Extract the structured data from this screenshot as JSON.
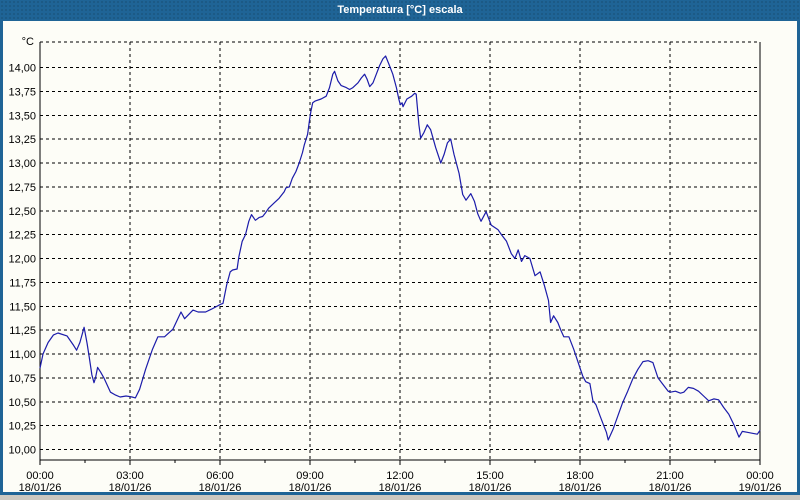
{
  "window": {
    "title": "Temperatura [°C] escala"
  },
  "frame": {
    "title_bar_color": "#1f6496",
    "border_color": "#1f6496",
    "background": "#fdfdf7",
    "outer_strip_color": "#ccc8c0"
  },
  "chart_data": {
    "type": "line",
    "title": "Temperatura [°C] escala",
    "y_unit_label": "°C",
    "xlabel": "",
    "ylabel": "",
    "ylim": [
      9.9,
      14.27
    ],
    "x_hours_range": [
      0,
      24
    ],
    "grid": "dashed",
    "legend_position": "none",
    "minor_x_tick_hours": 1.5,
    "grid_color": "#000000",
    "yticks": [
      {
        "v": 14.0,
        "label": "14,00"
      },
      {
        "v": 13.75,
        "label": "13,75"
      },
      {
        "v": 13.5,
        "label": "13,50"
      },
      {
        "v": 13.25,
        "label": "13,25"
      },
      {
        "v": 13.0,
        "label": "13,00"
      },
      {
        "v": 12.75,
        "label": "12,75"
      },
      {
        "v": 12.5,
        "label": "12,50"
      },
      {
        "v": 12.25,
        "label": "12,25"
      },
      {
        "v": 12.0,
        "label": "12,00"
      },
      {
        "v": 11.75,
        "label": "11,75"
      },
      {
        "v": 11.5,
        "label": "11,50"
      },
      {
        "v": 11.25,
        "label": "11,25"
      },
      {
        "v": 11.0,
        "label": "11,00"
      },
      {
        "v": 10.75,
        "label": "10,75"
      },
      {
        "v": 10.5,
        "label": "10,50"
      },
      {
        "v": 10.25,
        "label": "10,25"
      },
      {
        "v": 10.0,
        "label": "10,00"
      }
    ],
    "xticks": [
      {
        "h": 0,
        "time": "00:00",
        "date": "18/01/26"
      },
      {
        "h": 3,
        "time": "03:00",
        "date": "18/01/26"
      },
      {
        "h": 6,
        "time": "06:00",
        "date": "18/01/26"
      },
      {
        "h": 9,
        "time": "09:00",
        "date": "18/01/26"
      },
      {
        "h": 12,
        "time": "12:00",
        "date": "18/01/26"
      },
      {
        "h": 15,
        "time": "15:00",
        "date": "18/01/26"
      },
      {
        "h": 18,
        "time": "18:00",
        "date": "18/01/26"
      },
      {
        "h": 21,
        "time": "21:00",
        "date": "18/01/26"
      },
      {
        "h": 24,
        "time": "00:00",
        "date": "19/01/26"
      }
    ],
    "series": [
      {
        "name": "Temperatura",
        "color": "#1c1caa",
        "points": [
          [
            0.0,
            10.85
          ],
          [
            0.1,
            11.0
          ],
          [
            0.27,
            11.12
          ],
          [
            0.45,
            11.2
          ],
          [
            0.6,
            11.22
          ],
          [
            0.9,
            11.19
          ],
          [
            1.12,
            11.09
          ],
          [
            1.22,
            11.04
          ],
          [
            1.33,
            11.12
          ],
          [
            1.47,
            11.28
          ],
          [
            1.57,
            11.11
          ],
          [
            1.64,
            10.97
          ],
          [
            1.73,
            10.78
          ],
          [
            1.8,
            10.7
          ],
          [
            1.85,
            10.75
          ],
          [
            1.92,
            10.86
          ],
          [
            2.02,
            10.81
          ],
          [
            2.13,
            10.75
          ],
          [
            2.35,
            10.6
          ],
          [
            2.52,
            10.57
          ],
          [
            2.67,
            10.55
          ],
          [
            2.87,
            10.56
          ],
          [
            3.07,
            10.55
          ],
          [
            3.18,
            10.54
          ],
          [
            3.32,
            10.63
          ],
          [
            3.52,
            10.84
          ],
          [
            3.75,
            11.05
          ],
          [
            3.93,
            11.18
          ],
          [
            4.15,
            11.18
          ],
          [
            4.43,
            11.26
          ],
          [
            4.7,
            11.44
          ],
          [
            4.82,
            11.37
          ],
          [
            5.1,
            11.46
          ],
          [
            5.27,
            11.44
          ],
          [
            5.52,
            11.44
          ],
          [
            5.72,
            11.47
          ],
          [
            6.02,
            11.52
          ],
          [
            6.1,
            11.53
          ],
          [
            6.22,
            11.72
          ],
          [
            6.34,
            11.86
          ],
          [
            6.42,
            11.88
          ],
          [
            6.57,
            11.89
          ],
          [
            6.63,
            12.02
          ],
          [
            6.74,
            12.18
          ],
          [
            6.85,
            12.25
          ],
          [
            6.96,
            12.39
          ],
          [
            7.05,
            12.46
          ],
          [
            7.18,
            12.4
          ],
          [
            7.31,
            12.43
          ],
          [
            7.42,
            12.44
          ],
          [
            7.52,
            12.48
          ],
          [
            7.63,
            12.53
          ],
          [
            7.8,
            12.58
          ],
          [
            7.97,
            12.63
          ],
          [
            8.14,
            12.7
          ],
          [
            8.2,
            12.74
          ],
          [
            8.31,
            12.75
          ],
          [
            8.41,
            12.84
          ],
          [
            8.53,
            12.91
          ],
          [
            8.64,
            13.0
          ],
          [
            8.75,
            13.11
          ],
          [
            8.81,
            13.19
          ],
          [
            8.92,
            13.3
          ],
          [
            8.98,
            13.44
          ],
          [
            9.03,
            13.54
          ],
          [
            9.09,
            13.63
          ],
          [
            9.18,
            13.65
          ],
          [
            9.37,
            13.67
          ],
          [
            9.54,
            13.7
          ],
          [
            9.65,
            13.79
          ],
          [
            9.76,
            13.93
          ],
          [
            9.82,
            13.96
          ],
          [
            9.93,
            13.86
          ],
          [
            10.04,
            13.81
          ],
          [
            10.21,
            13.79
          ],
          [
            10.32,
            13.77
          ],
          [
            10.43,
            13.79
          ],
          [
            10.6,
            13.84
          ],
          [
            10.71,
            13.89
          ],
          [
            10.82,
            13.93
          ],
          [
            10.9,
            13.88
          ],
          [
            10.99,
            13.8
          ],
          [
            11.1,
            13.84
          ],
          [
            11.21,
            13.93
          ],
          [
            11.32,
            14.02
          ],
          [
            11.43,
            14.09
          ],
          [
            11.52,
            14.12
          ],
          [
            11.65,
            14.02
          ],
          [
            11.76,
            13.93
          ],
          [
            11.88,
            13.79
          ],
          [
            11.96,
            13.67
          ],
          [
            12.01,
            13.61
          ],
          [
            12.07,
            13.63
          ],
          [
            12.1,
            13.59
          ],
          [
            12.23,
            13.67
          ],
          [
            12.39,
            13.7
          ],
          [
            12.49,
            13.73
          ],
          [
            12.54,
            13.72
          ],
          [
            12.58,
            13.58
          ],
          [
            12.63,
            13.4
          ],
          [
            12.69,
            13.26
          ],
          [
            12.8,
            13.32
          ],
          [
            12.91,
            13.4
          ],
          [
            13.02,
            13.35
          ],
          [
            13.19,
            13.16
          ],
          [
            13.36,
            13.0
          ],
          [
            13.47,
            13.09
          ],
          [
            13.58,
            13.21
          ],
          [
            13.69,
            13.25
          ],
          [
            13.8,
            13.09
          ],
          [
            13.97,
            12.89
          ],
          [
            14.09,
            12.67
          ],
          [
            14.2,
            12.61
          ],
          [
            14.36,
            12.68
          ],
          [
            14.48,
            12.6
          ],
          [
            14.59,
            12.47
          ],
          [
            14.7,
            12.39
          ],
          [
            14.87,
            12.49
          ],
          [
            15.04,
            12.35
          ],
          [
            15.27,
            12.3
          ],
          [
            15.38,
            12.25
          ],
          [
            15.55,
            12.18
          ],
          [
            15.71,
            12.05
          ],
          [
            15.83,
            12.0
          ],
          [
            15.94,
            12.09
          ],
          [
            16.05,
            11.97
          ],
          [
            16.16,
            12.03
          ],
          [
            16.33,
            12.0
          ],
          [
            16.5,
            11.82
          ],
          [
            16.67,
            11.86
          ],
          [
            16.81,
            11.72
          ],
          [
            16.95,
            11.56
          ],
          [
            17.02,
            11.33
          ],
          [
            17.12,
            11.4
          ],
          [
            17.26,
            11.33
          ],
          [
            17.36,
            11.25
          ],
          [
            17.46,
            11.18
          ],
          [
            17.63,
            11.18
          ],
          [
            17.79,
            11.05
          ],
          [
            17.94,
            10.91
          ],
          [
            18.09,
            10.77
          ],
          [
            18.19,
            10.71
          ],
          [
            18.33,
            10.69
          ],
          [
            18.43,
            10.51
          ],
          [
            18.53,
            10.47
          ],
          [
            18.67,
            10.35
          ],
          [
            18.78,
            10.26
          ],
          [
            18.88,
            10.18
          ],
          [
            18.94,
            10.1
          ],
          [
            19.1,
            10.21
          ],
          [
            19.26,
            10.35
          ],
          [
            19.42,
            10.49
          ],
          [
            19.59,
            10.61
          ],
          [
            19.76,
            10.74
          ],
          [
            19.93,
            10.84
          ],
          [
            20.1,
            10.92
          ],
          [
            20.27,
            10.93
          ],
          [
            20.43,
            10.91
          ],
          [
            20.6,
            10.75
          ],
          [
            20.77,
            10.68
          ],
          [
            20.94,
            10.61
          ],
          [
            21.01,
            10.6
          ],
          [
            21.18,
            10.61
          ],
          [
            21.35,
            10.59
          ],
          [
            21.46,
            10.6
          ],
          [
            21.61,
            10.65
          ],
          [
            21.78,
            10.64
          ],
          [
            21.95,
            10.61
          ],
          [
            22.12,
            10.56
          ],
          [
            22.29,
            10.51
          ],
          [
            22.46,
            10.53
          ],
          [
            22.62,
            10.52
          ],
          [
            22.79,
            10.44
          ],
          [
            22.96,
            10.37
          ],
          [
            23.13,
            10.26
          ],
          [
            23.3,
            10.13
          ],
          [
            23.41,
            10.19
          ],
          [
            23.58,
            10.18
          ],
          [
            23.75,
            10.17
          ],
          [
            23.91,
            10.16
          ],
          [
            24.0,
            10.2
          ]
        ]
      }
    ]
  }
}
